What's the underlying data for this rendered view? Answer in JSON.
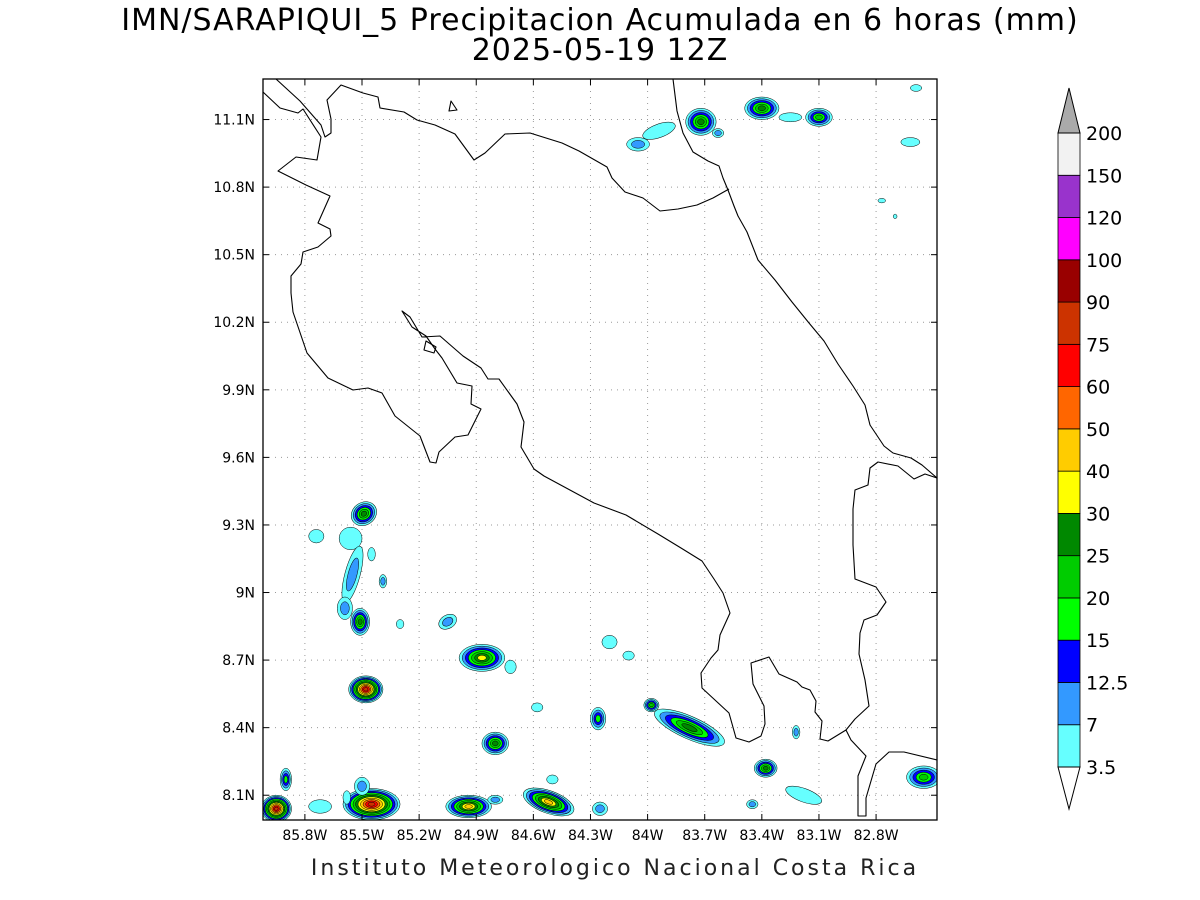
{
  "title": "IMN/SARAPIQUI_5 Precipitacion Acumulada en 6 horas (mm)",
  "subtitle": "2025-05-19 12Z",
  "credit": "Instituto Meteorologico Nacional Costa Rica",
  "chart_data": {
    "type": "heatmap",
    "variable": "Precipitacion Acumulada en 6 horas (mm)",
    "lon_range": [
      -86.02,
      -82.48
    ],
    "lat_range": [
      7.99,
      11.28
    ],
    "grid": true,
    "lon_ticks": [
      {
        "value": -85.8,
        "label": "85.8W"
      },
      {
        "value": -85.5,
        "label": "85.5W"
      },
      {
        "value": -85.2,
        "label": "85.2W"
      },
      {
        "value": -84.9,
        "label": "84.9W"
      },
      {
        "value": -84.6,
        "label": "84.6W"
      },
      {
        "value": -84.3,
        "label": "84.3W"
      },
      {
        "value": -84.0,
        "label": "84W"
      },
      {
        "value": -83.7,
        "label": "83.7W"
      },
      {
        "value": -83.4,
        "label": "83.4W"
      },
      {
        "value": -83.1,
        "label": "83.1W"
      },
      {
        "value": -82.8,
        "label": "82.8W"
      }
    ],
    "lat_ticks": [
      {
        "value": 8.1,
        "label": "8.1N"
      },
      {
        "value": 8.4,
        "label": "8.4N"
      },
      {
        "value": 8.7,
        "label": "8.7N"
      },
      {
        "value": 9.0,
        "label": "9N"
      },
      {
        "value": 9.3,
        "label": "9.3N"
      },
      {
        "value": 9.6,
        "label": "9.6N"
      },
      {
        "value": 9.9,
        "label": "9.9N"
      },
      {
        "value": 10.2,
        "label": "10.2N"
      },
      {
        "value": 10.5,
        "label": "10.5N"
      },
      {
        "value": 10.8,
        "label": "10.8N"
      },
      {
        "value": 11.1,
        "label": "11.1N"
      }
    ],
    "colorbar": {
      "labels": [
        "3.5",
        "7",
        "12.5",
        "15",
        "20",
        "25",
        "30",
        "40",
        "50",
        "60",
        "75",
        "90",
        "100",
        "120",
        "150",
        "200"
      ],
      "colors": [
        "#66ffff",
        "#3399ff",
        "#0000ff",
        "#00ff00",
        "#00cc00",
        "#008800",
        "#ffff00",
        "#ffcc00",
        "#ff6600",
        "#ff0000",
        "#cc3300",
        "#990000",
        "#ff00ff",
        "#9933cc",
        "#f2f2f2"
      ],
      "under_color": "#ffffff",
      "over_color": "#aaaaaa"
    },
    "precip_cells": [
      {
        "lon": -85.49,
        "lat": 9.35,
        "rx": 0.07,
        "ry": 0.05,
        "rot": -35,
        "max": 25
      },
      {
        "lon": -85.56,
        "lat": 9.24,
        "rx": 0.06,
        "ry": 0.05,
        "max": 3.5
      },
      {
        "lon": -85.74,
        "lat": 9.25,
        "rx": 0.04,
        "ry": 0.03,
        "max": 3.5
      },
      {
        "lon": -85.55,
        "lat": 9.08,
        "rx": 0.04,
        "ry": 0.13,
        "rot": 15,
        "max": 7
      },
      {
        "lon": -85.59,
        "lat": 8.93,
        "rx": 0.04,
        "ry": 0.05,
        "max": 7
      },
      {
        "lon": -85.45,
        "lat": 9.17,
        "rx": 0.02,
        "ry": 0.03,
        "max": 3.5
      },
      {
        "lon": -85.39,
        "lat": 9.05,
        "rx": 0.02,
        "ry": 0.03,
        "max": 7
      },
      {
        "lon": -85.51,
        "lat": 8.87,
        "rx": 0.05,
        "ry": 0.06,
        "max": 25
      },
      {
        "lon": -85.48,
        "lat": 8.57,
        "rx": 0.09,
        "ry": 0.06,
        "max": 75
      },
      {
        "lon": -85.3,
        "lat": 8.86,
        "rx": 0.02,
        "ry": 0.02,
        "max": 3.5
      },
      {
        "lon": -85.05,
        "lat": 8.87,
        "rx": 0.05,
        "ry": 0.03,
        "rot": -30,
        "max": 7
      },
      {
        "lon": -84.87,
        "lat": 8.71,
        "rx": 0.12,
        "ry": 0.06,
        "max": 30
      },
      {
        "lon": -84.72,
        "lat": 8.67,
        "rx": 0.03,
        "ry": 0.03,
        "max": 3.5
      },
      {
        "lon": -84.8,
        "lat": 8.33,
        "rx": 0.07,
        "ry": 0.05,
        "max": 25
      },
      {
        "lon": -84.58,
        "lat": 8.49,
        "rx": 0.03,
        "ry": 0.02,
        "max": 3.5
      },
      {
        "lon": -84.5,
        "lat": 8.17,
        "rx": 0.03,
        "ry": 0.02,
        "max": 3.5
      },
      {
        "lon": -84.2,
        "lat": 8.78,
        "rx": 0.04,
        "ry": 0.03,
        "max": 3.5
      },
      {
        "lon": -84.1,
        "lat": 8.72,
        "rx": 0.03,
        "ry": 0.02,
        "max": 3.5
      },
      {
        "lon": -84.26,
        "lat": 8.44,
        "rx": 0.04,
        "ry": 0.05,
        "max": 15
      },
      {
        "lon": -83.98,
        "lat": 8.5,
        "rx": 0.04,
        "ry": 0.03,
        "max": 20
      },
      {
        "lon": -83.78,
        "lat": 8.4,
        "rx": 0.2,
        "ry": 0.05,
        "rot": 24,
        "max": 25
      },
      {
        "lon": -83.38,
        "lat": 8.22,
        "rx": 0.06,
        "ry": 0.04,
        "max": 25
      },
      {
        "lon": -83.18,
        "lat": 8.1,
        "rx": 0.1,
        "ry": 0.03,
        "rot": 20,
        "max": 3.5
      },
      {
        "lon": -83.22,
        "lat": 8.38,
        "rx": 0.02,
        "ry": 0.03,
        "max": 7
      },
      {
        "lon": -83.45,
        "lat": 8.06,
        "rx": 0.03,
        "ry": 0.02,
        "max": 7
      },
      {
        "lon": -82.55,
        "lat": 8.18,
        "rx": 0.09,
        "ry": 0.05,
        "max": 20
      },
      {
        "lon": -85.9,
        "lat": 8.17,
        "rx": 0.03,
        "ry": 0.05,
        "max": 15
      },
      {
        "lon": -85.95,
        "lat": 8.04,
        "rx": 0.08,
        "ry": 0.06,
        "max": 75
      },
      {
        "lon": -85.45,
        "lat": 8.06,
        "rx": 0.15,
        "ry": 0.07,
        "max": 75
      },
      {
        "lon": -85.5,
        "lat": 8.14,
        "rx": 0.04,
        "ry": 0.04,
        "max": 7
      },
      {
        "lon": -85.58,
        "lat": 8.09,
        "rx": 0.02,
        "ry": 0.03,
        "max": 3.5
      },
      {
        "lon": -85.72,
        "lat": 8.05,
        "rx": 0.06,
        "ry": 0.03,
        "max": 3.5
      },
      {
        "lon": -84.94,
        "lat": 8.05,
        "rx": 0.12,
        "ry": 0.05,
        "max": 40
      },
      {
        "lon": -84.8,
        "lat": 8.08,
        "rx": 0.04,
        "ry": 0.02,
        "max": 7
      },
      {
        "lon": -84.52,
        "lat": 8.07,
        "rx": 0.14,
        "ry": 0.05,
        "rot": 20,
        "max": 40
      },
      {
        "lon": -84.25,
        "lat": 8.04,
        "rx": 0.04,
        "ry": 0.03,
        "max": 7
      },
      {
        "lon": -83.72,
        "lat": 11.09,
        "rx": 0.08,
        "ry": 0.06,
        "max": 25
      },
      {
        "lon": -83.4,
        "lat": 11.15,
        "rx": 0.09,
        "ry": 0.05,
        "max": 25
      },
      {
        "lon": -83.1,
        "lat": 11.11,
        "rx": 0.07,
        "ry": 0.04,
        "max": 20
      },
      {
        "lon": -83.94,
        "lat": 11.05,
        "rx": 0.09,
        "ry": 0.03,
        "rot": -20,
        "max": 3.5
      },
      {
        "lon": -84.05,
        "lat": 10.99,
        "rx": 0.06,
        "ry": 0.03,
        "max": 7
      },
      {
        "lon": -83.63,
        "lat": 11.04,
        "rx": 0.03,
        "ry": 0.02,
        "max": 7
      },
      {
        "lon": -83.25,
        "lat": 11.11,
        "rx": 0.06,
        "ry": 0.02,
        "max": 3.5
      },
      {
        "lon": -82.62,
        "lat": 11.0,
        "rx": 0.05,
        "ry": 0.02,
        "max": 3.5
      },
      {
        "lon": -82.59,
        "lat": 11.24,
        "rx": 0.03,
        "ry": 0.015,
        "max": 3.5
      },
      {
        "lon": -82.77,
        "lat": 10.74,
        "rx": 0.02,
        "ry": 0.01,
        "max": 3.5
      },
      {
        "lon": -82.7,
        "lat": 10.67,
        "rx": 0.01,
        "ry": 0.01,
        "max": 3.5
      }
    ]
  }
}
